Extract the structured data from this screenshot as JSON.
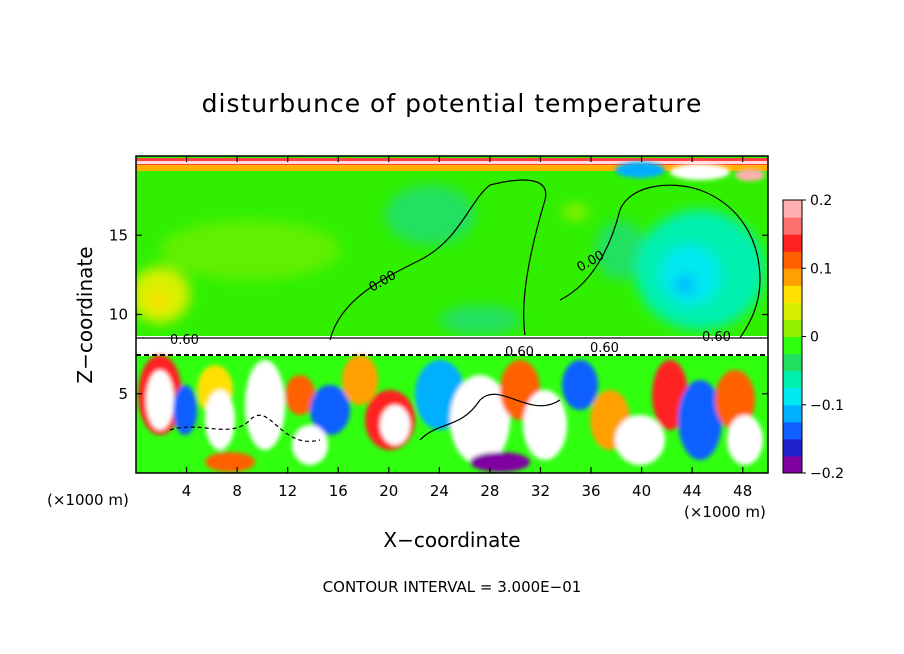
{
  "chart_data": {
    "type": "heatmap",
    "title": "disturbunce of potential temperature",
    "xlabel": "X−coordinate",
    "ylabel": "Z−coordinate",
    "x_unit_left": "(×1000 m)",
    "x_unit_right": "(×1000 m)",
    "xlim": [
      0,
      50
    ],
    "ylim": [
      0,
      20
    ],
    "x_ticks": [
      "4",
      "8",
      "12",
      "16",
      "20",
      "24",
      "28",
      "32",
      "36",
      "40",
      "44",
      "48"
    ],
    "y_ticks": [
      "5",
      "10",
      "15"
    ],
    "colorbar": {
      "range": [
        -0.2,
        0.2
      ],
      "tick_labels": [
        "0.2",
        "0.1",
        "0",
        "−0.1",
        "−0.2"
      ],
      "colors": [
        "#8000a0",
        "#2020c8",
        "#1060ff",
        "#00b0ff",
        "#00e8f0",
        "#00f0b0",
        "#20e060",
        "#30ff10",
        "#90f000",
        "#d8f000",
        "#ffe000",
        "#ffa000",
        "#ff6000",
        "#ff2020",
        "#ff7070",
        "#ffb0b0"
      ]
    },
    "contour_labels": [
      "0.00",
      "0.00",
      "0.60",
      "0.60",
      "0.60",
      "0.60"
    ],
    "footer": "CONTOUR INTERVAL = 3.000E−01"
  }
}
